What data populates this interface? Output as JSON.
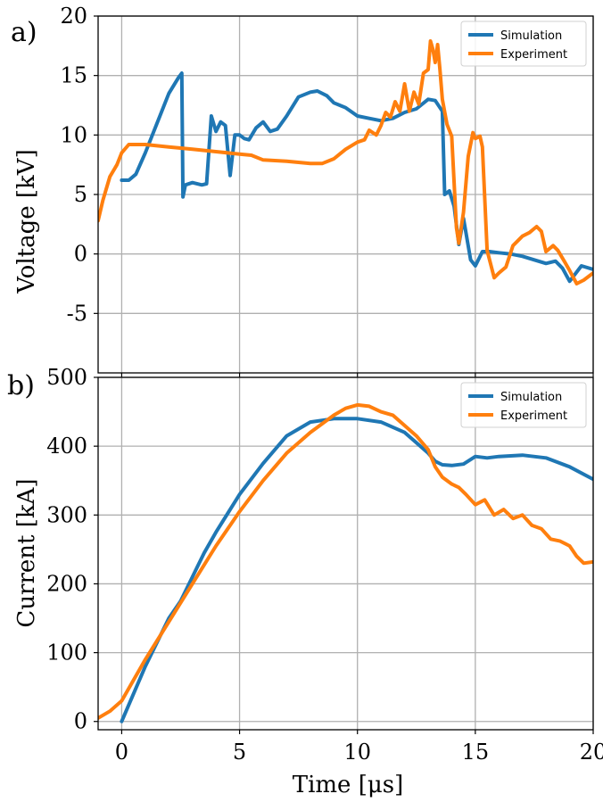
{
  "colors": {
    "simulation": "#1f77b4",
    "experiment": "#ff7f0e"
  },
  "chart_data": [
    {
      "type": "line",
      "panel_label": "a)",
      "xlabel": "",
      "ylabel": "Voltage [kV]",
      "xlim": [
        -1,
        20
      ],
      "ylim": [
        -10,
        20
      ],
      "xticks": [
        0,
        5,
        10,
        15,
        20
      ],
      "yticks": [
        -5,
        0,
        5,
        10,
        15,
        20
      ],
      "ytick_labels": [
        "-5",
        "0",
        "5",
        "10",
        "15",
        "20"
      ],
      "grid": true,
      "legend_position": "top-right",
      "series": [
        {
          "name": "Simulation",
          "color_key": "simulation",
          "x": [
            0,
            0.3,
            0.6,
            1.0,
            1.5,
            2.0,
            2.4,
            2.55,
            2.6,
            2.7,
            3.0,
            3.4,
            3.6,
            3.8,
            4.0,
            4.2,
            4.4,
            4.6,
            4.8,
            5.0,
            5.2,
            5.4,
            5.7,
            6.0,
            6.3,
            6.6,
            7.0,
            7.5,
            8.0,
            8.3,
            8.7,
            9.0,
            9.5,
            10.0,
            10.5,
            11.0,
            11.5,
            12.0,
            12.5,
            13.0,
            13.3,
            13.6,
            13.7,
            13.9,
            14.1,
            14.3,
            14.5,
            14.8,
            15.0,
            15.3,
            15.6,
            16.0,
            16.5,
            17.0,
            17.5,
            18.0,
            18.4,
            18.7,
            19.0,
            19.5,
            20.0
          ],
          "y": [
            6.2,
            6.2,
            6.7,
            8.5,
            11.0,
            13.5,
            14.8,
            15.2,
            4.8,
            5.8,
            6.0,
            5.8,
            5.9,
            11.6,
            10.3,
            11.1,
            10.8,
            6.6,
            10.0,
            10.0,
            9.7,
            9.6,
            10.6,
            11.1,
            10.3,
            10.5,
            11.6,
            13.2,
            13.6,
            13.7,
            13.3,
            12.7,
            12.3,
            11.6,
            11.4,
            11.2,
            11.4,
            11.9,
            12.2,
            13.0,
            12.9,
            12.0,
            5.0,
            5.3,
            4.0,
            0.8,
            3.0,
            -0.5,
            -1.0,
            0.2,
            0.2,
            0.1,
            0.0,
            -0.2,
            -0.5,
            -0.8,
            -0.6,
            -1.2,
            -2.3,
            -1.0,
            -1.3
          ]
        },
        {
          "name": "Experiment",
          "color_key": "experiment",
          "x": [
            -1.0,
            -0.8,
            -0.5,
            -0.2,
            0.0,
            0.3,
            0.6,
            1.0,
            2.0,
            3.0,
            4.0,
            5.0,
            5.5,
            6.0,
            7.0,
            7.5,
            8.0,
            8.5,
            9.0,
            9.5,
            10.0,
            10.3,
            10.5,
            10.8,
            11.0,
            11.2,
            11.4,
            11.6,
            11.8,
            12.0,
            12.2,
            12.4,
            12.6,
            12.8,
            13.0,
            13.1,
            13.2,
            13.3,
            13.4,
            13.5,
            13.6,
            13.8,
            14.0,
            14.2,
            14.3,
            14.5,
            14.7,
            14.9,
            15.0,
            15.2,
            15.3,
            15.5,
            15.8,
            16.0,
            16.3,
            16.6,
            17.0,
            17.3,
            17.6,
            17.8,
            18.0,
            18.3,
            18.5,
            18.8,
            19.0,
            19.3,
            19.6,
            20.0
          ],
          "y": [
            2.8,
            4.5,
            6.5,
            7.5,
            8.5,
            9.2,
            9.2,
            9.2,
            9.0,
            8.8,
            8.6,
            8.4,
            8.3,
            7.9,
            7.8,
            7.7,
            7.6,
            7.6,
            8.0,
            8.8,
            9.4,
            9.6,
            10.4,
            10.0,
            10.8,
            11.9,
            11.5,
            12.8,
            12.0,
            14.3,
            12.0,
            13.6,
            12.6,
            15.2,
            15.5,
            17.9,
            17.2,
            16.1,
            17.6,
            15.5,
            13.0,
            10.9,
            9.9,
            2.2,
            0.9,
            3.5,
            8.2,
            10.2,
            9.7,
            9.9,
            9.0,
            0.3,
            -2.0,
            -1.6,
            -1.1,
            0.7,
            1.5,
            1.8,
            2.3,
            1.9,
            0.2,
            0.7,
            0.3,
            -0.7,
            -1.4,
            -2.5,
            -2.2,
            -1.6
          ]
        }
      ]
    },
    {
      "type": "line",
      "panel_label": "b)",
      "xlabel": "Time [μs]",
      "ylabel": "Current [kA]",
      "xlim": [
        -1,
        20
      ],
      "ylim": [
        -12,
        500
      ],
      "xticks": [
        0,
        5,
        10,
        15,
        20
      ],
      "xtick_labels": [
        "0",
        "5",
        "10",
        "15",
        "20"
      ],
      "yticks": [
        0,
        100,
        200,
        300,
        400,
        500
      ],
      "ytick_labels": [
        "0",
        "100",
        "200",
        "300",
        "400",
        "500"
      ],
      "grid": true,
      "legend_position": "top-right",
      "series": [
        {
          "name": "Simulation",
          "color_key": "simulation",
          "x": [
            0,
            0.5,
            1.0,
            1.5,
            2.0,
            2.5,
            3.0,
            3.5,
            4.0,
            5.0,
            6.0,
            7.0,
            8.0,
            9.0,
            10.0,
            11.0,
            12.0,
            12.5,
            13.0,
            13.3,
            13.6,
            14.0,
            14.5,
            15.0,
            15.5,
            16.0,
            17.0,
            18.0,
            19.0,
            20.0
          ],
          "y": [
            0,
            40,
            80,
            115,
            150,
            175,
            210,
            245,
            275,
            330,
            375,
            415,
            435,
            440,
            440,
            435,
            420,
            405,
            390,
            378,
            373,
            372,
            374,
            385,
            383,
            385,
            387,
            383,
            370,
            352
          ]
        },
        {
          "name": "Experiment",
          "color_key": "experiment",
          "x": [
            -1.0,
            -0.5,
            0.0,
            1.0,
            2.0,
            3.0,
            4.0,
            5.0,
            6.0,
            7.0,
            8.0,
            9.0,
            9.5,
            10.0,
            10.5,
            11.0,
            11.5,
            12.0,
            12.5,
            13.0,
            13.3,
            13.6,
            14.0,
            14.3,
            14.6,
            15.0,
            15.4,
            15.8,
            16.2,
            16.6,
            17.0,
            17.4,
            17.8,
            18.2,
            18.6,
            19.0,
            19.3,
            19.6,
            20.0
          ],
          "y": [
            5,
            15,
            30,
            90,
            145,
            200,
            255,
            305,
            350,
            390,
            420,
            445,
            455,
            460,
            458,
            450,
            445,
            430,
            415,
            395,
            370,
            355,
            345,
            340,
            330,
            315,
            322,
            300,
            308,
            295,
            300,
            285,
            280,
            265,
            262,
            255,
            240,
            230,
            232
          ]
        }
      ]
    }
  ]
}
